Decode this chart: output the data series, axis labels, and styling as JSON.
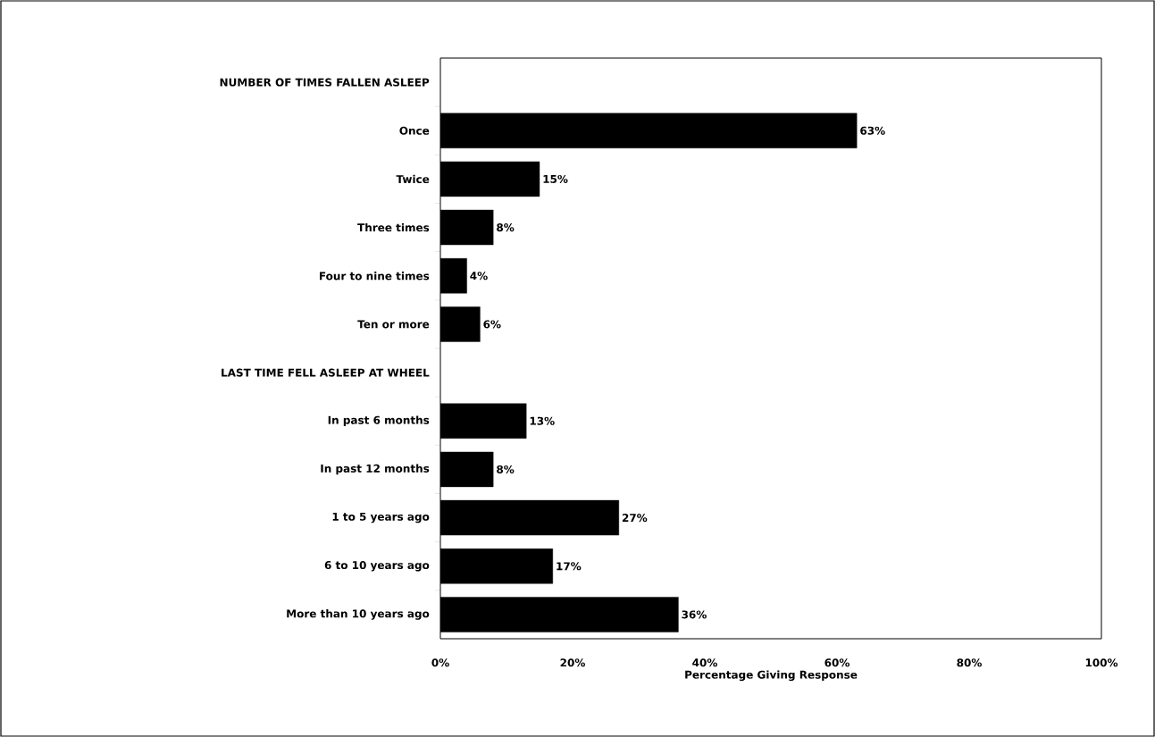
{
  "chart_data": {
    "type": "bar",
    "orientation": "horizontal",
    "xlabel": "Percentage Giving Response",
    "categories": [
      "NUMBER OF TIMES FALLEN ASLEEP",
      "Once",
      "Twice",
      "Three times",
      "Four to nine times",
      "Ten or more",
      "LAST TIME FELL ASLEEP AT WHEEL",
      "In past 6 months",
      "In past 12 months",
      "1 to 5 years ago",
      "6 to 10 years ago",
      "More than 10 years ago"
    ],
    "values": [
      null,
      63,
      15,
      8,
      4,
      6,
      null,
      13,
      8,
      27,
      17,
      36
    ],
    "value_labels": [
      null,
      "63%",
      "15%",
      "8%",
      "4%",
      "6%",
      null,
      "13%",
      "8%",
      "27%",
      "17%",
      "36%"
    ],
    "color": "#000000",
    "xlim": [
      0,
      100
    ],
    "xticks": [
      {
        "value": 0,
        "label": "0%"
      },
      {
        "value": 20,
        "label": "20%"
      },
      {
        "value": 40,
        "label": "40%"
      },
      {
        "value": 60,
        "label": "60%"
      },
      {
        "value": 80,
        "label": "80%"
      },
      {
        "value": 100,
        "label": "100%"
      }
    ]
  }
}
